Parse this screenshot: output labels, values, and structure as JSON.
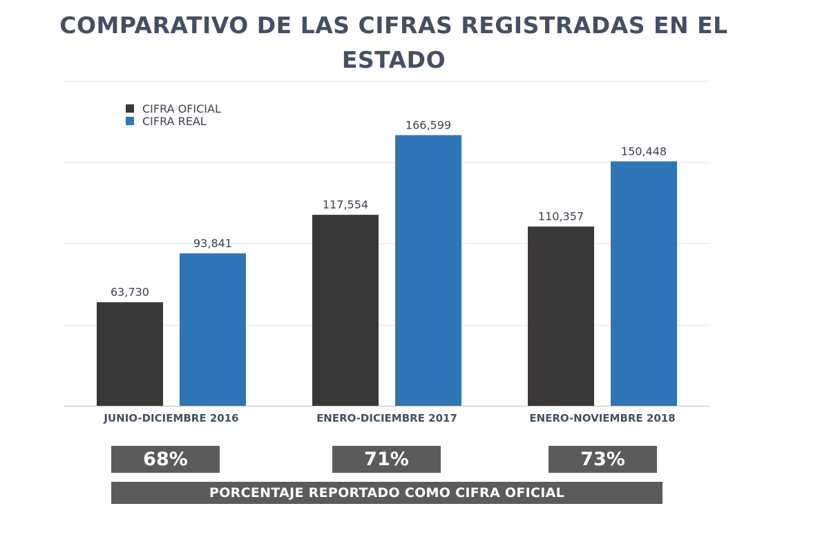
{
  "colors": {
    "oficial": "#3a3738",
    "real": "#2e75b6",
    "title": "#454f64",
    "box": "#5b5b5b",
    "grid": "#e6e6e6",
    "axis": "#bdbdbd"
  },
  "chart_data": {
    "type": "bar",
    "title": "COMPARATIVO DE LAS CIFRAS REGISTRADAS EN EL ESTADO",
    "categories": [
      "JUNIO-DICIEMBRE 2016",
      "ENERO-DICIEMBRE 2017",
      "ENERO-NOVIEMBRE 2018"
    ],
    "series": [
      {
        "name": "CIFRA OFICIAL",
        "values": [
          63730,
          117554,
          110357
        ],
        "labels": [
          "63,730",
          "117,554",
          "110,357"
        ]
      },
      {
        "name": "CIFRA REAL",
        "values": [
          93841,
          166599,
          150448
        ],
        "labels": [
          "93,841",
          "166,599",
          "150,448"
        ]
      }
    ],
    "ylim": [
      0,
      200000
    ],
    "grid": true,
    "legend_position": "top-left",
    "xlabel": "",
    "ylabel": ""
  },
  "percentages": {
    "items": [
      "68%",
      "71%",
      "73%"
    ],
    "caption": "PORCENTAJE REPORTADO COMO CIFRA OFICIAL"
  }
}
